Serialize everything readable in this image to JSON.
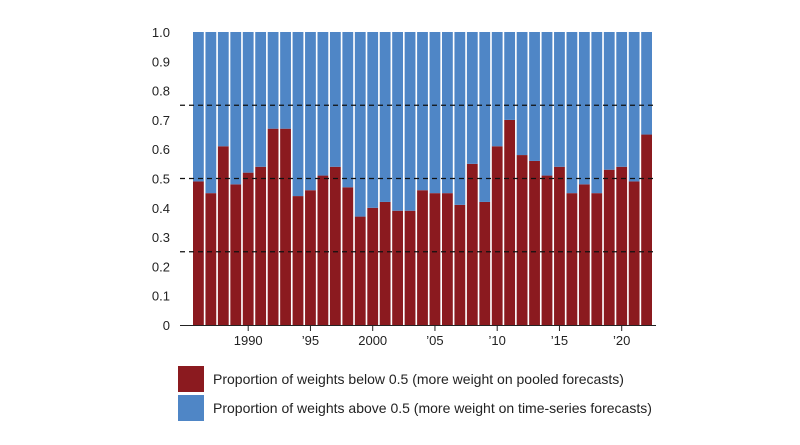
{
  "chart_data": {
    "type": "bar",
    "stacked": true,
    "title": "",
    "xlabel": "",
    "ylabel": "",
    "ylim": [
      0,
      1
    ],
    "yticks": [
      "0",
      "0.1",
      "0.2",
      "0.3",
      "0.4",
      "0.5",
      "0.6",
      "0.7",
      "0.8",
      "0.9",
      "1.0"
    ],
    "x_tick_labels": [
      {
        "year": 1990,
        "label": "1990"
      },
      {
        "year": 1995,
        "label": "’95"
      },
      {
        "year": 2000,
        "label": "2000"
      },
      {
        "year": 2005,
        "label": "’05"
      },
      {
        "year": 2010,
        "label": "’10"
      },
      {
        "year": 2015,
        "label": "’15"
      },
      {
        "year": 2020,
        "label": "’20"
      }
    ],
    "reference_lines": [
      0.25,
      0.5,
      0.75
    ],
    "categories": [
      1986,
      1987,
      1988,
      1989,
      1990,
      1991,
      1992,
      1993,
      1994,
      1995,
      1996,
      1997,
      1998,
      1999,
      2000,
      2001,
      2002,
      2003,
      2004,
      2005,
      2006,
      2007,
      2008,
      2009,
      2010,
      2011,
      2012,
      2013,
      2014,
      2015,
      2016,
      2017,
      2018,
      2019,
      2020,
      2021,
      2022
    ],
    "series": [
      {
        "name": "Proportion of weights below 0.5 (more weight on pooled forecasts)",
        "color": "#8b1a1f",
        "values": [
          0.49,
          0.45,
          0.61,
          0.48,
          0.52,
          0.54,
          0.67,
          0.67,
          0.44,
          0.46,
          0.51,
          0.54,
          0.47,
          0.37,
          0.4,
          0.42,
          0.39,
          0.39,
          0.46,
          0.45,
          0.45,
          0.41,
          0.55,
          0.42,
          0.61,
          0.7,
          0.58,
          0.56,
          0.51,
          0.54,
          0.45,
          0.48,
          0.45,
          0.53,
          0.54,
          0.49,
          0.65
        ]
      },
      {
        "name": "Proportion of weights above 0.5 (more weight on time-series forecasts)",
        "color": "#4f86c6",
        "values": [
          0.51,
          0.55,
          0.39,
          0.52,
          0.48,
          0.46,
          0.33,
          0.33,
          0.56,
          0.54,
          0.49,
          0.46,
          0.53,
          0.63,
          0.6,
          0.58,
          0.61,
          0.61,
          0.54,
          0.55,
          0.55,
          0.59,
          0.45,
          0.58,
          0.39,
          0.3,
          0.42,
          0.44,
          0.49,
          0.46,
          0.55,
          0.52,
          0.55,
          0.47,
          0.46,
          0.51,
          0.35
        ]
      }
    ]
  }
}
